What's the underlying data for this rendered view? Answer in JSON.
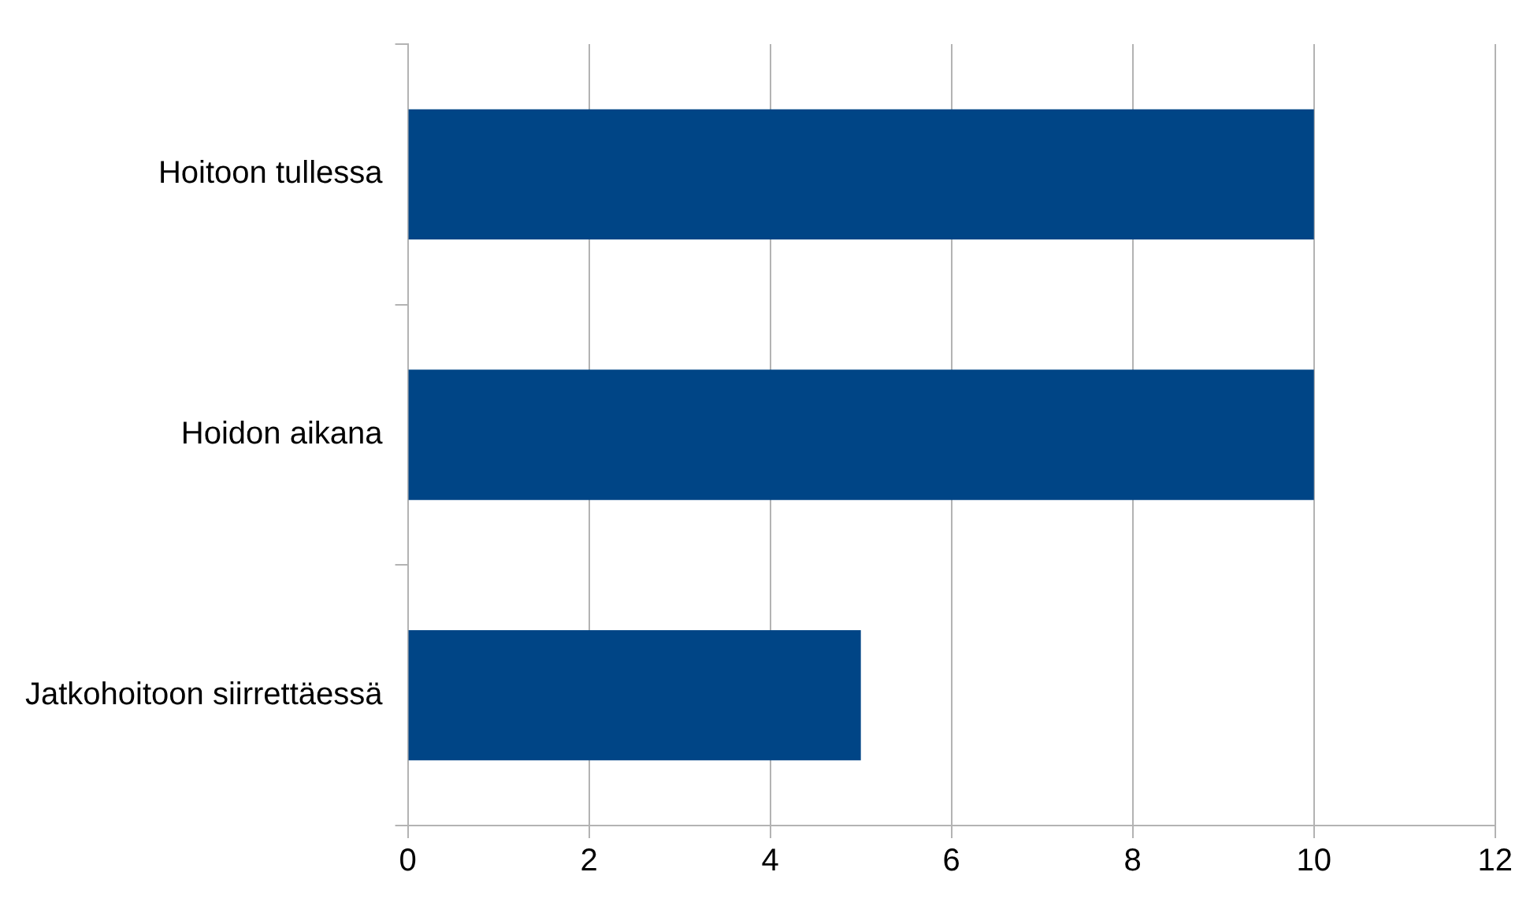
{
  "chart_data": {
    "type": "bar",
    "orientation": "horizontal",
    "categories": [
      "Hoitoon tullessa",
      "Hoidon aikana",
      "Jatkohoitoon siirrettäessä"
    ],
    "values": [
      10,
      10,
      5
    ],
    "color": "#004586",
    "xlim": [
      0,
      12
    ],
    "xticks": [
      0,
      2,
      4,
      6,
      8,
      10,
      12
    ],
    "grid": "x"
  }
}
